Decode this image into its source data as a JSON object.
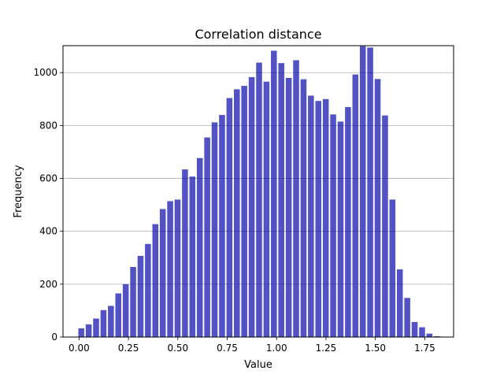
{
  "chart_data": {
    "type": "bar",
    "title": "Correlation distance",
    "xlabel": "Value",
    "ylabel": "Frequency",
    "xlim": [
      -0.0812,
      1.8959
    ],
    "ylim": [
      0,
      1102
    ],
    "grid": {
      "y": true,
      "x": false
    },
    "bar_color": "#0000aa",
    "grid_color": "#b0b0b0",
    "bin_width": 0.0375,
    "x_ticks": [
      0.0,
      0.25,
      0.5,
      0.75,
      1.0,
      1.25,
      1.5,
      1.75
    ],
    "x_tick_labels": [
      "0.00",
      "0.25",
      "0.50",
      "0.75",
      "1.00",
      "1.25",
      "1.50",
      "1.75"
    ],
    "y_ticks": [
      0,
      200,
      400,
      600,
      800,
      1000
    ],
    "y_tick_labels": [
      "0",
      "200",
      "400",
      "600",
      "800",
      "1000"
    ],
    "x": [
      0.0113,
      0.0488,
      0.0863,
      0.1238,
      0.1613,
      0.1988,
      0.2363,
      0.2738,
      0.3113,
      0.3488,
      0.3863,
      0.4238,
      0.4613,
      0.4988,
      0.5363,
      0.5738,
      0.6113,
      0.6488,
      0.6863,
      0.7238,
      0.7613,
      0.7988,
      0.8363,
      0.8738,
      0.9113,
      0.9488,
      0.9863,
      1.0238,
      1.0613,
      1.0988,
      1.1363,
      1.1738,
      1.2113,
      1.2488,
      1.2863,
      1.3238,
      1.3613,
      1.3988,
      1.4363,
      1.4738,
      1.5113,
      1.5488,
      1.5863,
      1.6238,
      1.6613,
      1.6988,
      1.7363,
      1.7738,
      1.8113
    ],
    "values": [
      33,
      48,
      70,
      102,
      118,
      165,
      200,
      265,
      307,
      352,
      427,
      484,
      514,
      520,
      634,
      607,
      677,
      755,
      812,
      840,
      904,
      937,
      950,
      983,
      1038,
      966,
      1083,
      1036,
      980,
      1047,
      975,
      913,
      893,
      900,
      842,
      815,
      870,
      993,
      1100,
      1095,
      976,
      838,
      520,
      256,
      148,
      57,
      37,
      13,
      3
    ]
  }
}
